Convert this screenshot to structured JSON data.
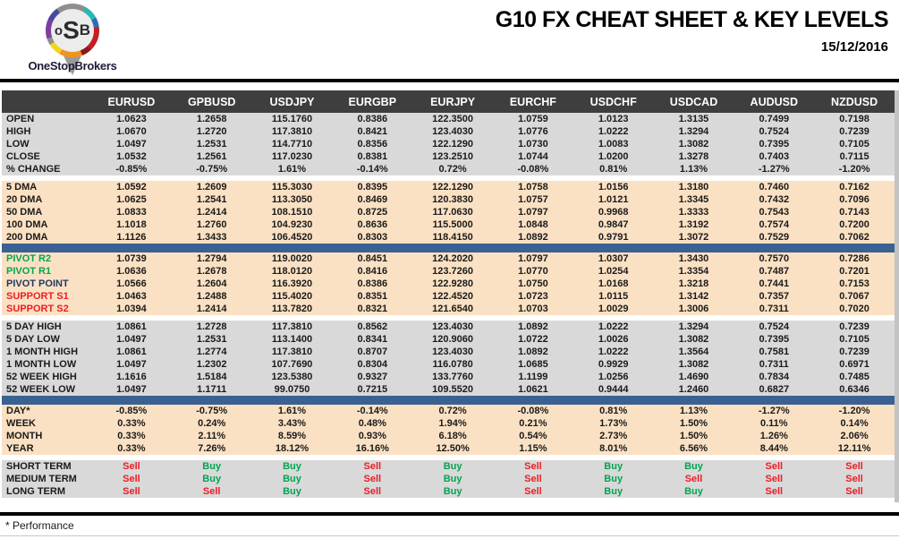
{
  "logo": {
    "letter_o": "o",
    "letter_s": "S",
    "letter_b": "B",
    "brand": "OneStopBrokers"
  },
  "header": {
    "title": "G10 FX CHEAT SHEET & KEY LEVELS",
    "date": "15/12/2016"
  },
  "footnote": "* Performance",
  "colors": {
    "header_bg": "#3E3E3E",
    "header_text": "#FFFFFF",
    "gray_section_bg": "#D9D9D9",
    "peach_section_bg": "#FBE1C3",
    "divider_blue": "#3A6191",
    "pivot_green": "#00A551",
    "pivot_navy": "#203864",
    "support_red": "#ED1C24",
    "buy_green": "#00A551",
    "sell_red": "#ED1C24"
  },
  "table": {
    "columns": [
      "EURUSD",
      "GPBUSD",
      "USDJPY",
      "EURGBP",
      "EURJPY",
      "EURCHF",
      "USDCHF",
      "USDCAD",
      "AUDUSD",
      "NZDUSD"
    ],
    "sections": [
      {
        "id": "ohlc",
        "bg": "gray",
        "divider_after": false,
        "rows": [
          {
            "label": "OPEN",
            "values": [
              "1.0623",
              "1.2658",
              "115.1760",
              "0.8386",
              "122.3500",
              "1.0759",
              "1.0123",
              "1.3135",
              "0.7499",
              "0.7198"
            ]
          },
          {
            "label": "HIGH",
            "values": [
              "1.0670",
              "1.2720",
              "117.3810",
              "0.8421",
              "123.4030",
              "1.0776",
              "1.0222",
              "1.3294",
              "0.7524",
              "0.7239"
            ]
          },
          {
            "label": "LOW",
            "values": [
              "1.0497",
              "1.2531",
              "114.7710",
              "0.8356",
              "122.1290",
              "1.0730",
              "1.0083",
              "1.3082",
              "0.7395",
              "0.7105"
            ]
          },
          {
            "label": "CLOSE",
            "values": [
              "1.0532",
              "1.2561",
              "117.0230",
              "0.8381",
              "123.2510",
              "1.0744",
              "1.0200",
              "1.3278",
              "0.7403",
              "0.7115"
            ]
          },
          {
            "label": "% CHANGE",
            "values": [
              "-0.85%",
              "-0.75%",
              "1.61%",
              "-0.14%",
              "0.72%",
              "-0.08%",
              "0.81%",
              "1.13%",
              "-1.27%",
              "-1.20%"
            ]
          }
        ]
      },
      {
        "id": "dma",
        "bg": "peach",
        "divider_after": true,
        "rows": [
          {
            "label": "5 DMA",
            "values": [
              "1.0592",
              "1.2609",
              "115.3030",
              "0.8395",
              "122.1290",
              "1.0758",
              "1.0156",
              "1.3180",
              "0.7460",
              "0.7162"
            ]
          },
          {
            "label": "20 DMA",
            "values": [
              "1.0625",
              "1.2541",
              "113.3050",
              "0.8469",
              "120.3830",
              "1.0757",
              "1.0121",
              "1.3345",
              "0.7432",
              "0.7096"
            ]
          },
          {
            "label": "50 DMA",
            "values": [
              "1.0833",
              "1.2414",
              "108.1510",
              "0.8725",
              "117.0630",
              "1.0797",
              "0.9968",
              "1.3333",
              "0.7543",
              "0.7143"
            ]
          },
          {
            "label": "100 DMA",
            "values": [
              "1.1018",
              "1.2760",
              "104.9230",
              "0.8636",
              "115.5000",
              "1.0848",
              "0.9847",
              "1.3192",
              "0.7574",
              "0.7200"
            ]
          },
          {
            "label": "200 DMA",
            "values": [
              "1.1126",
              "1.3433",
              "106.4520",
              "0.8303",
              "118.4150",
              "1.0892",
              "0.9791",
              "1.3072",
              "0.7529",
              "0.7062"
            ]
          }
        ]
      },
      {
        "id": "pivots",
        "bg": "peach",
        "divider_after": false,
        "rows": [
          {
            "label": "PIVOT R2",
            "label_color": "pivot_green",
            "values": [
              "1.0739",
              "1.2794",
              "119.0020",
              "0.8451",
              "124.2020",
              "1.0797",
              "1.0307",
              "1.3430",
              "0.7570",
              "0.7286"
            ]
          },
          {
            "label": "PIVOT R1",
            "label_color": "pivot_green",
            "values": [
              "1.0636",
              "1.2678",
              "118.0120",
              "0.8416",
              "123.7260",
              "1.0770",
              "1.0254",
              "1.3354",
              "0.7487",
              "0.7201"
            ]
          },
          {
            "label": "PIVOT POINT",
            "label_color": "pivot_navy",
            "values": [
              "1.0566",
              "1.2604",
              "116.3920",
              "0.8386",
              "122.9280",
              "1.0750",
              "1.0168",
              "1.3218",
              "0.7441",
              "0.7153"
            ]
          },
          {
            "label": "SUPPORT S1",
            "label_color": "support_red",
            "values": [
              "1.0463",
              "1.2488",
              "115.4020",
              "0.8351",
              "122.4520",
              "1.0723",
              "1.0115",
              "1.3142",
              "0.7357",
              "0.7067"
            ]
          },
          {
            "label": "SUPPORT S2",
            "label_color": "support_red",
            "values": [
              "1.0394",
              "1.2414",
              "113.7820",
              "0.8321",
              "121.6540",
              "1.0703",
              "1.0029",
              "1.3006",
              "0.7311",
              "0.7020"
            ]
          }
        ]
      },
      {
        "id": "ranges",
        "bg": "gray",
        "divider_after": true,
        "rows": [
          {
            "label": "5 DAY HIGH",
            "values": [
              "1.0861",
              "1.2728",
              "117.3810",
              "0.8562",
              "123.4030",
              "1.0892",
              "1.0222",
              "1.3294",
              "0.7524",
              "0.7239"
            ]
          },
          {
            "label": "5 DAY LOW",
            "values": [
              "1.0497",
              "1.2531",
              "113.1400",
              "0.8341",
              "120.9060",
              "1.0722",
              "1.0026",
              "1.3082",
              "0.7395",
              "0.7105"
            ]
          },
          {
            "label": "1 MONTH HIGH",
            "values": [
              "1.0861",
              "1.2774",
              "117.3810",
              "0.8707",
              "123.4030",
              "1.0892",
              "1.0222",
              "1.3564",
              "0.7581",
              "0.7239"
            ]
          },
          {
            "label": "1 MONTH LOW",
            "values": [
              "1.0497",
              "1.2302",
              "107.7690",
              "0.8304",
              "116.0780",
              "1.0685",
              "0.9929",
              "1.3082",
              "0.7311",
              "0.6971"
            ]
          },
          {
            "label": "52 WEEK HIGH",
            "values": [
              "1.1616",
              "1.5184",
              "123.5380",
              "0.9327",
              "133.7760",
              "1.1199",
              "1.0256",
              "1.4690",
              "0.7834",
              "0.7485"
            ]
          },
          {
            "label": "52 WEEK LOW",
            "values": [
              "1.0497",
              "1.1711",
              "99.0750",
              "0.7215",
              "109.5520",
              "1.0621",
              "0.9444",
              "1.2460",
              "0.6827",
              "0.6346"
            ]
          }
        ]
      },
      {
        "id": "performance",
        "bg": "peach",
        "divider_after": false,
        "rows": [
          {
            "label": "DAY*",
            "values": [
              "-0.85%",
              "-0.75%",
              "1.61%",
              "-0.14%",
              "0.72%",
              "-0.08%",
              "0.81%",
              "1.13%",
              "-1.27%",
              "-1.20%"
            ]
          },
          {
            "label": "WEEK",
            "values": [
              "0.33%",
              "0.24%",
              "3.43%",
              "0.48%",
              "1.94%",
              "0.21%",
              "1.73%",
              "1.50%",
              "0.11%",
              "0.14%"
            ]
          },
          {
            "label": "MONTH",
            "values": [
              "0.33%",
              "2.11%",
              "8.59%",
              "0.93%",
              "6.18%",
              "0.54%",
              "2.73%",
              "1.50%",
              "1.26%",
              "2.06%"
            ]
          },
          {
            "label": "YEAR",
            "values": [
              "0.33%",
              "7.26%",
              "18.12%",
              "16.16%",
              "12.50%",
              "1.15%",
              "8.01%",
              "6.56%",
              "8.44%",
              "12.11%"
            ]
          }
        ]
      },
      {
        "id": "signals",
        "bg": "gray",
        "divider_after": false,
        "rows": [
          {
            "label": "SHORT TERM",
            "values": [
              "Sell",
              "Buy",
              "Buy",
              "Sell",
              "Buy",
              "Sell",
              "Buy",
              "Buy",
              "Sell",
              "Sell"
            ]
          },
          {
            "label": "MEDIUM TERM",
            "values": [
              "Sell",
              "Buy",
              "Buy",
              "Sell",
              "Buy",
              "Sell",
              "Buy",
              "Sell",
              "Sell",
              "Sell"
            ]
          },
          {
            "label": "LONG TERM",
            "values": [
              "Sell",
              "Sell",
              "Buy",
              "Sell",
              "Buy",
              "Sell",
              "Buy",
              "Buy",
              "Sell",
              "Sell"
            ]
          }
        ]
      }
    ]
  }
}
